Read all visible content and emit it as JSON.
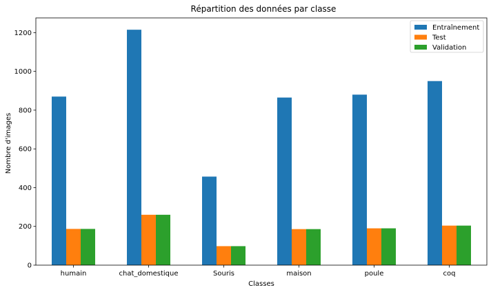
{
  "chart_data": {
    "type": "bar",
    "title": "Répartition des données par classe",
    "xlabel": "Classes",
    "ylabel": "Nombre d'images",
    "categories": [
      "humain",
      "chat_domestique",
      "Souris",
      "maison",
      "poule",
      "coq"
    ],
    "series": [
      {
        "name": "Entraînement",
        "color": "#1f77b4",
        "values": [
          870,
          1215,
          457,
          865,
          880,
          950
        ]
      },
      {
        "name": "Test",
        "color": "#ff7f0e",
        "values": [
          187,
          260,
          98,
          186,
          190,
          204
        ]
      },
      {
        "name": "Validation",
        "color": "#2ca02c",
        "values": [
          187,
          260,
          98,
          186,
          190,
          204
        ]
      }
    ],
    "ylim": [
      0,
      1276
    ],
    "yticks": [
      0,
      200,
      400,
      600,
      800,
      1000,
      1200
    ],
    "grid": false,
    "legend": "top-right"
  }
}
